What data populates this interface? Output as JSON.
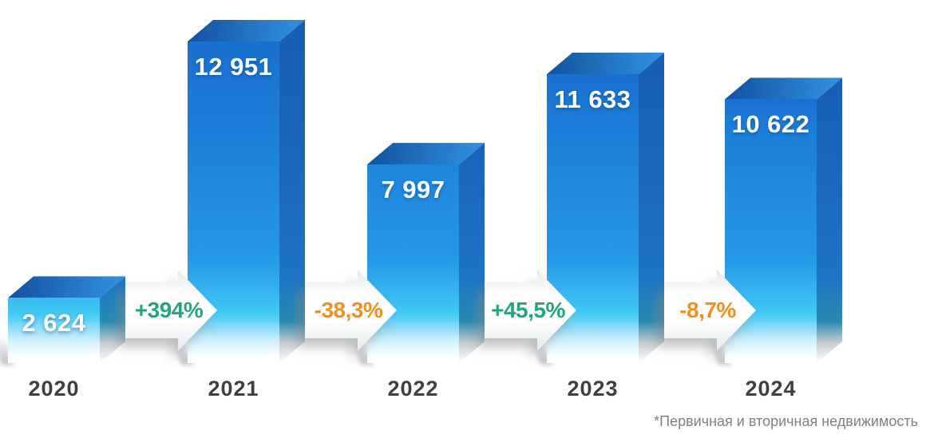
{
  "chart_data": {
    "type": "bar",
    "title": "",
    "xlabel": "",
    "ylabel": "",
    "categories": [
      "2020",
      "2021",
      "2022",
      "2023",
      "2024"
    ],
    "values": [
      2624,
      12951,
      7997,
      11633,
      10622
    ],
    "values_text": [
      "2 624",
      "12 951",
      "7 997",
      "11 633",
      "10 622"
    ],
    "changes": [
      {
        "label": "+394%",
        "direction": "up"
      },
      {
        "label": "-38,3%",
        "direction": "down"
      },
      {
        "label": "+45,5%",
        "direction": "up"
      },
      {
        "label": "-8,7%",
        "direction": "down"
      }
    ],
    "footnote": "*Первичная и вторичная недвижимость",
    "ylim": [
      0,
      12951
    ],
    "grid": false,
    "legend": false,
    "style": "3d-blue-gradient-bars",
    "colors": {
      "background": "#ffffff",
      "bar_front_top": "#1a70cf",
      "bar_front_mid": "#2ba3e8",
      "bar_front_bottom": "#ffffff",
      "bar_top_face": "#11519f",
      "bar_side_face": "#1a66bb",
      "value_label": "#ffffff",
      "positive_change": "#21a67e",
      "negative_change": "#ee9122",
      "year_label": "#3f3f3f",
      "footnote": "#818181",
      "arrow_fill": "#ffffff"
    }
  }
}
